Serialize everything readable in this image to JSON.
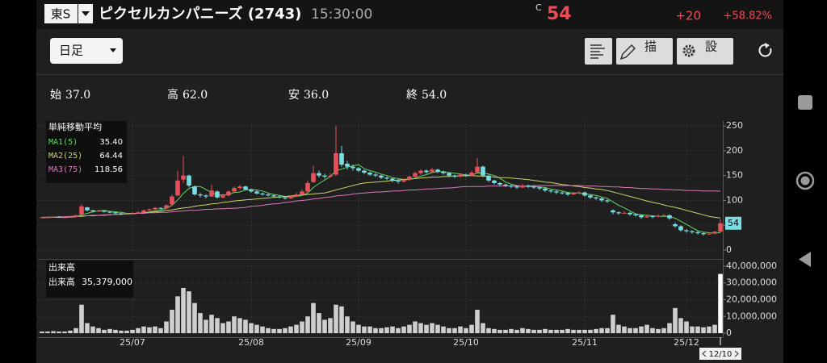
{
  "header": {
    "market": "東S",
    "name": "ピクセルカンパニーズ (2743)",
    "time": "15:30:00",
    "flag": "C",
    "price": "54",
    "change": "+20",
    "change_pct": "+58.82%"
  },
  "toolbar": {
    "period": "日足",
    "draw": "描画",
    "settings": "設定"
  },
  "ohlc": [
    {
      "label": "始",
      "value": "37.0"
    },
    {
      "label": "高",
      "value": "62.0"
    },
    {
      "label": "安",
      "value": "36.0"
    },
    {
      "label": "終",
      "value": "54.0"
    }
  ],
  "chart_data": {
    "type": "candlestick",
    "categories": [
      null,
      null,
      null,
      null,
      null,
      null,
      null,
      null,
      null,
      null,
      null,
      null,
      null,
      null,
      null,
      null,
      "25/07",
      null,
      null,
      null,
      null,
      null,
      null,
      null,
      null,
      null,
      null,
      null,
      null,
      null,
      null,
      null,
      null,
      null,
      null,
      null,
      null,
      "25/08",
      null,
      null,
      null,
      null,
      null,
      null,
      null,
      null,
      null,
      null,
      null,
      null,
      null,
      null,
      null,
      null,
      null,
      null,
      "25/09",
      null,
      null,
      null,
      null,
      null,
      null,
      null,
      null,
      null,
      null,
      null,
      null,
      null,
      null,
      null,
      null,
      null,
      null,
      "25/10",
      null,
      null,
      null,
      null,
      null,
      null,
      null,
      null,
      null,
      null,
      null,
      null,
      null,
      null,
      null,
      null,
      null,
      null,
      null,
      null,
      "25/11",
      null,
      null,
      null,
      null,
      null,
      null,
      null,
      null,
      null,
      null,
      null,
      null,
      null,
      null,
      null,
      null,
      null,
      "25/12",
      null,
      null,
      null,
      null,
      null,
      "12/10"
    ],
    "candles": [
      [
        65,
        67,
        64,
        66
      ],
      [
        66,
        68,
        65,
        66
      ],
      [
        66,
        68,
        65,
        67
      ],
      [
        67,
        68,
        65,
        66
      ],
      [
        66,
        67,
        65,
        66
      ],
      [
        66,
        68,
        65,
        67
      ],
      [
        67,
        72,
        66,
        70
      ],
      [
        72,
        92,
        71,
        88
      ],
      [
        86,
        87,
        78,
        80
      ],
      [
        80,
        81,
        76,
        78
      ],
      [
        78,
        81,
        77,
        79
      ],
      [
        79,
        80,
        76,
        77
      ],
      [
        77,
        78,
        74,
        76
      ],
      [
        76,
        77,
        73,
        74
      ],
      [
        74,
        75,
        71,
        72
      ],
      [
        72,
        75,
        71,
        73
      ],
      [
        73,
        76,
        72,
        74
      ],
      [
        74,
        78,
        73,
        76
      ],
      [
        76,
        82,
        75,
        80
      ],
      [
        80,
        84,
        79,
        82
      ],
      [
        82,
        87,
        81,
        85
      ],
      [
        85,
        86,
        82,
        84
      ],
      [
        84,
        92,
        83,
        90
      ],
      [
        92,
        112,
        90,
        108
      ],
      [
        110,
        160,
        108,
        140
      ],
      [
        142,
        190,
        135,
        150
      ],
      [
        150,
        152,
        126,
        130
      ],
      [
        128,
        130,
        110,
        112
      ],
      [
        112,
        115,
        106,
        110
      ],
      [
        110,
        112,
        104,
        108
      ],
      [
        108,
        132,
        107,
        120
      ],
      [
        118,
        120,
        104,
        106
      ],
      [
        106,
        113,
        104,
        110
      ],
      [
        110,
        120,
        108,
        118
      ],
      [
        118,
        128,
        116,
        125
      ],
      [
        125,
        131,
        122,
        128
      ],
      [
        128,
        130,
        120,
        122
      ],
      [
        122,
        124,
        116,
        118
      ],
      [
        118,
        120,
        112,
        114
      ],
      [
        114,
        116,
        110,
        112
      ],
      [
        112,
        114,
        108,
        110
      ],
      [
        110,
        112,
        106,
        108
      ],
      [
        108,
        110,
        104,
        106
      ],
      [
        106,
        108,
        102,
        104
      ],
      [
        104,
        110,
        103,
        108
      ],
      [
        108,
        115,
        107,
        112
      ],
      [
        112,
        122,
        110,
        118
      ],
      [
        118,
        140,
        116,
        135
      ],
      [
        137,
        170,
        135,
        155
      ],
      [
        155,
        160,
        146,
        150
      ],
      [
        150,
        154,
        144,
        148
      ],
      [
        148,
        155,
        146,
        150
      ],
      [
        152,
        250,
        150,
        195
      ],
      [
        195,
        210,
        168,
        172
      ],
      [
        174,
        180,
        162,
        168
      ],
      [
        168,
        172,
        160,
        165
      ],
      [
        165,
        167,
        157,
        160
      ],
      [
        160,
        162,
        153,
        156
      ],
      [
        156,
        158,
        149,
        152
      ],
      [
        152,
        155,
        147,
        150
      ],
      [
        150,
        152,
        143,
        146
      ],
      [
        146,
        148,
        141,
        144
      ],
      [
        144,
        146,
        137,
        140
      ],
      [
        140,
        142,
        134,
        138
      ],
      [
        138,
        145,
        136,
        142
      ],
      [
        142,
        150,
        140,
        148
      ],
      [
        148,
        158,
        146,
        155
      ],
      [
        155,
        163,
        152,
        160
      ],
      [
        160,
        162,
        154,
        157
      ],
      [
        157,
        166,
        155,
        162
      ],
      [
        162,
        164,
        155,
        158
      ],
      [
        158,
        160,
        152,
        155
      ],
      [
        155,
        157,
        147,
        150
      ],
      [
        150,
        152,
        145,
        148
      ],
      [
        148,
        155,
        146,
        152
      ],
      [
        152,
        154,
        147,
        150
      ],
      [
        150,
        160,
        149,
        156
      ],
      [
        156,
        185,
        154,
        168
      ],
      [
        168,
        170,
        147,
        150
      ],
      [
        150,
        152,
        137,
        140
      ],
      [
        140,
        142,
        132,
        135
      ],
      [
        135,
        137,
        129,
        132
      ],
      [
        132,
        134,
        127,
        130
      ],
      [
        130,
        132,
        125,
        128
      ],
      [
        128,
        130,
        123,
        126
      ],
      [
        126,
        133,
        125,
        130
      ],
      [
        130,
        132,
        125,
        128
      ],
      [
        128,
        130,
        123,
        126
      ],
      [
        126,
        128,
        121,
        124
      ],
      [
        124,
        126,
        117,
        120
      ],
      [
        120,
        122,
        115,
        118
      ],
      [
        118,
        120,
        113,
        116
      ],
      [
        116,
        118,
        112,
        115
      ],
      [
        115,
        117,
        109,
        112
      ],
      [
        112,
        117,
        111,
        114
      ],
      [
        114,
        119,
        113,
        116
      ],
      [
        116,
        118,
        107,
        110
      ],
      [
        110,
        112,
        103,
        106
      ],
      [
        106,
        108,
        101,
        104
      ],
      [
        104,
        106,
        97,
        100
      ],
      [
        100,
        102,
        95,
        98
      ],
      [
        80,
        82,
        72,
        76
      ],
      [
        76,
        78,
        71,
        74
      ],
      [
        74,
        78,
        73,
        75
      ],
      [
        75,
        77,
        69,
        72
      ],
      [
        72,
        74,
        67,
        70
      ],
      [
        70,
        72,
        63,
        66
      ],
      [
        66,
        71,
        65,
        68
      ],
      [
        68,
        70,
        64,
        67
      ],
      [
        67,
        72,
        66,
        69
      ],
      [
        69,
        73,
        67,
        70
      ],
      [
        70,
        72,
        61,
        64
      ],
      [
        52,
        55,
        45,
        48
      ],
      [
        48,
        50,
        37,
        40
      ],
      [
        40,
        42,
        35,
        38
      ],
      [
        38,
        40,
        33,
        36
      ],
      [
        36,
        38,
        31,
        34
      ],
      [
        34,
        36,
        29,
        32
      ],
      [
        32,
        36,
        31,
        33
      ],
      [
        33,
        39,
        32,
        37
      ],
      [
        37,
        62,
        36,
        54
      ]
    ],
    "up_color": "#e8505b",
    "down_color": "#79dde3",
    "ylim": [
      -13,
      260
    ],
    "yticks": [
      0,
      50,
      100,
      150,
      200,
      250
    ],
    "grid": true,
    "ma_title": "単純移動平均",
    "series": [
      {
        "name": "MA1(5)",
        "color": "#62d862",
        "legend_value": "35.40",
        "values": [
          66,
          66,
          66,
          66,
          66,
          66,
          67,
          71,
          74,
          77,
          79,
          80,
          78,
          77,
          76,
          74,
          74,
          74,
          75,
          77,
          79,
          81,
          84,
          90,
          101,
          114,
          124,
          128,
          128,
          122,
          116,
          111,
          111,
          112,
          116,
          117,
          121,
          122,
          121,
          119,
          115,
          112,
          110,
          108,
          107,
          108,
          110,
          115,
          126,
          134,
          141,
          148,
          160,
          163,
          167,
          170,
          172,
          164,
          160,
          157,
          153,
          150,
          146,
          144,
          142,
          142,
          145,
          149,
          152,
          156,
          158,
          158,
          156,
          155,
          153,
          151,
          151,
          155,
          155,
          153,
          150,
          145,
          137,
          133,
          130,
          129,
          128,
          128,
          127,
          126,
          123,
          121,
          119,
          116,
          115,
          115,
          113,
          112,
          110,
          107,
          104,
          97,
          90,
          85,
          79,
          73,
          71,
          70,
          69,
          68,
          68,
          68,
          64,
          58,
          52,
          45,
          39,
          36,
          35,
          34,
          35.4
        ]
      },
      {
        "name": "MA2(25)",
        "color": "#c9d46a",
        "legend_value": "64.44",
        "values": [
          65,
          66,
          66,
          66,
          67,
          67,
          68,
          68,
          69,
          69,
          70,
          70,
          71,
          72,
          72,
          73,
          74,
          74,
          75,
          76,
          77,
          78,
          80,
          81,
          83,
          85,
          86,
          88,
          90,
          91,
          93,
          94,
          96,
          97,
          99,
          100,
          101,
          102,
          103,
          104,
          105,
          106,
          107,
          108,
          109,
          110,
          111,
          112,
          113,
          114,
          115,
          118,
          121,
          124,
          127,
          130,
          133,
          135,
          136,
          137,
          138,
          139,
          140,
          141,
          142,
          143,
          144,
          145,
          146,
          147,
          147,
          148,
          148,
          149,
          149,
          150,
          150,
          149,
          149,
          148,
          147,
          146,
          146,
          145,
          144,
          143,
          142,
          140,
          139,
          137,
          136,
          134,
          132,
          131,
          129,
          128,
          126,
          125,
          123,
          122,
          120,
          117,
          114,
          111,
          108,
          105,
          102,
          99,
          96,
          94,
          91,
          88,
          86,
          83,
          80,
          77,
          74,
          71,
          68,
          66,
          64.44
        ]
      },
      {
        "name": "MA3(75)",
        "color": "#d67bb6",
        "legend_value": "118.56",
        "values": [
          65,
          66,
          66,
          67,
          67,
          68,
          68,
          69,
          69,
          70,
          70,
          71,
          71,
          72,
          72,
          73,
          73,
          74,
          74,
          75,
          75,
          76,
          76,
          77,
          78,
          79,
          80,
          80,
          81,
          82,
          82,
          83,
          83,
          84,
          84,
          85,
          86,
          88,
          89,
          90,
          92,
          93,
          94,
          96,
          97,
          99,
          100,
          101,
          103,
          104,
          106,
          107,
          109,
          110,
          111,
          113,
          114,
          115,
          116,
          117,
          117,
          118,
          119,
          119,
          120,
          121,
          121,
          122,
          123,
          123,
          124,
          125,
          125,
          126,
          127,
          128,
          128,
          128,
          128,
          129,
          129,
          129,
          129,
          129,
          129,
          129,
          129,
          130,
          130,
          130,
          130,
          130,
          130,
          130,
          130,
          130,
          129,
          129,
          129,
          128,
          128,
          127,
          127,
          126,
          126,
          125,
          124,
          124,
          123,
          123,
          122,
          122,
          121,
          121,
          120,
          120,
          120,
          119,
          119,
          119,
          118.56
        ]
      }
    ],
    "volume": {
      "title": "出来高",
      "name": "出来高",
      "legend_value": "35,379,000",
      "color": "#cfcfcf",
      "ylim": [
        -2400000,
        42400000
      ],
      "yticks": [
        0,
        {
          "value": 10000000,
          "label": "10,000,000"
        },
        {
          "value": 20000000,
          "label": "20,000,000"
        },
        {
          "value": 30000000,
          "label": "30,000,000"
        },
        {
          "value": 40000000,
          "label": "40,000,000"
        }
      ],
      "values": [
        1000000,
        1000000,
        1200000,
        1000000,
        1000000,
        1500000,
        3000000,
        17000000,
        6000000,
        4000000,
        3000000,
        2000000,
        2500000,
        2000000,
        1500000,
        1500000,
        2000000,
        3000000,
        4000000,
        3500000,
        4000000,
        3000000,
        7000000,
        14000000,
        22000000,
        27000000,
        25000000,
        18000000,
        12000000,
        8000000,
        11000000,
        9000000,
        6000000,
        7000000,
        10000000,
        9000000,
        8000000,
        6000000,
        5000000,
        4000000,
        3000000,
        2500000,
        2500000,
        3000000,
        4000000,
        5000000,
        7000000,
        10000000,
        18000000,
        12000000,
        8000000,
        9000000,
        17000000,
        16000000,
        10000000,
        7000000,
        5000000,
        4000000,
        4000000,
        3000000,
        3000000,
        3500000,
        4000000,
        3000000,
        4000000,
        5000000,
        7000000,
        6000000,
        5000000,
        6000000,
        5000000,
        4000000,
        3000000,
        3000000,
        4000000,
        3000000,
        5000000,
        14000000,
        6000000,
        3000000,
        2500000,
        2000000,
        2000000,
        2500000,
        2000000,
        3000000,
        2500000,
        2000000,
        2000000,
        2500000,
        2000000,
        2000000,
        2000000,
        2500000,
        2000000,
        2000000,
        2000000,
        2000000,
        2500000,
        3000000,
        3000000,
        11000000,
        5000000,
        4000000,
        3000000,
        3000000,
        4000000,
        5000000,
        3000000,
        2500000,
        3000000,
        6000000,
        15000000,
        9000000,
        7000000,
        4000000,
        4000000,
        3500000,
        4000000,
        5000000,
        35379000
      ]
    }
  }
}
